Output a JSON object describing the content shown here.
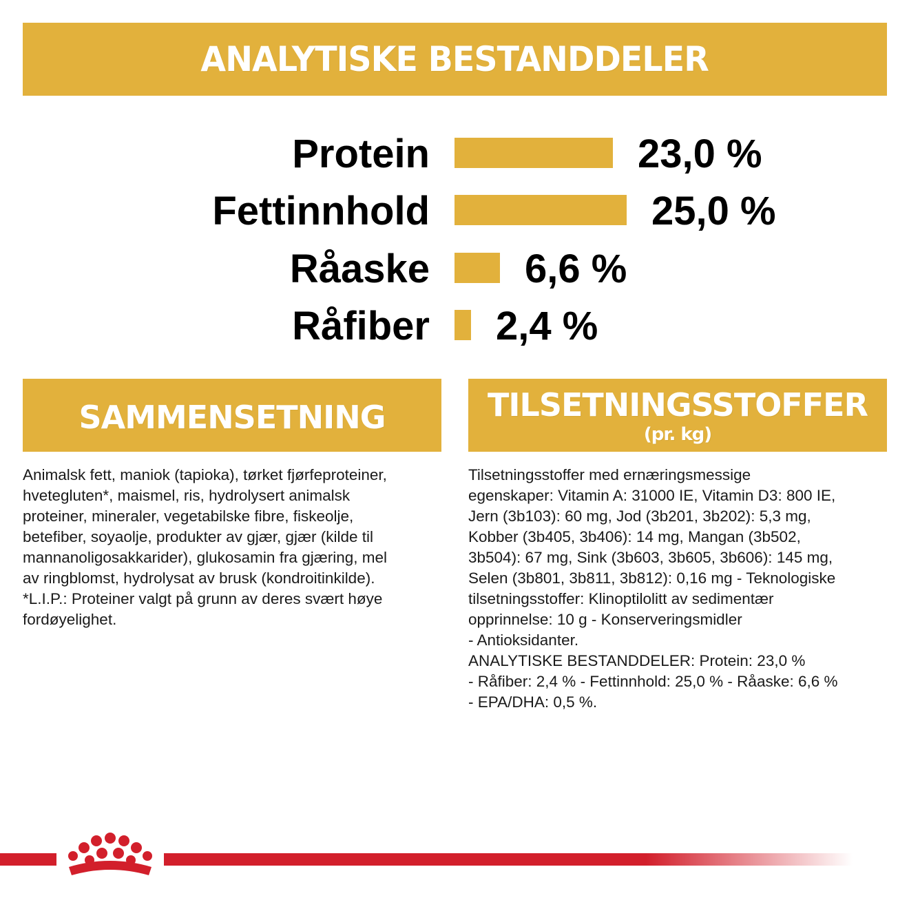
{
  "header": {
    "title": "ANALYTISKE BESTANDDELER"
  },
  "analysis": [
    {
      "label": "Protein",
      "value": "23,0 %",
      "level": 23.0
    },
    {
      "label": "Fettinnhold",
      "value": "25,0 %",
      "level": 25.0
    },
    {
      "label": "Råaske",
      "value": "6,6 %",
      "level": 6.6
    },
    {
      "label": "Råfiber",
      "value": "2,4 %",
      "level": 2.4
    }
  ],
  "composition": {
    "title": "SAMMENSETNING",
    "text": "Animalsk fett, maniok (tapioka), tørket fjørfeproteiner,\nhvetegluten*, maismel, ris, hydrolysert animalsk\nproteiner, mineraler, vegetabilske fibre, fiskeolje,\nbetefiber, soyaolje, produkter av gjær, gjær (kilde til\nmannanoligosakkarider), glukosamin fra gjæring, mel\nav ringblomst, hydrolysat av brusk (kondroitinkilde).\n*L.I.P.: Proteiner valgt på grunn av deres svært høye\nfordøyelighet."
  },
  "additives": {
    "title": "TILSETNINGSSTOFFER",
    "subtitle": "(pr. kg)",
    "text": "Tilsetningsstoffer med ernæringsmessige\negenskaper: Vitamin A: 31000 IE, Vitamin D3: 800 IE,\nJern (3b103): 60 mg, Jod (3b201, 3b202): 5,3 mg,\nKobber (3b405, 3b406): 14 mg, Mangan (3b502,\n3b504): 67 mg, Sink (3b603, 3b605, 3b606): 145 mg,\nSelen (3b801, 3b811, 3b812): 0,16 mg - Teknologiske\ntilsetningsstoffer: Klinoptilolitt av sedimentær\nopprinnelse: 10 g - Konserveringsmidler\n- Antioksidanter.\nANALYTISKE BESTANDDELER: Protein: 23,0 %\n- Råfiber: 2,4 % - Fettinnhold: 25,0 % - Råaske: 6,6 %\n- EPA/DHA: 0,5 %."
  },
  "colors": {
    "banner": "#e2b13c",
    "brand_red": "#d21f2b"
  },
  "icons": {
    "logo": "royal-canin-crown-icon"
  }
}
